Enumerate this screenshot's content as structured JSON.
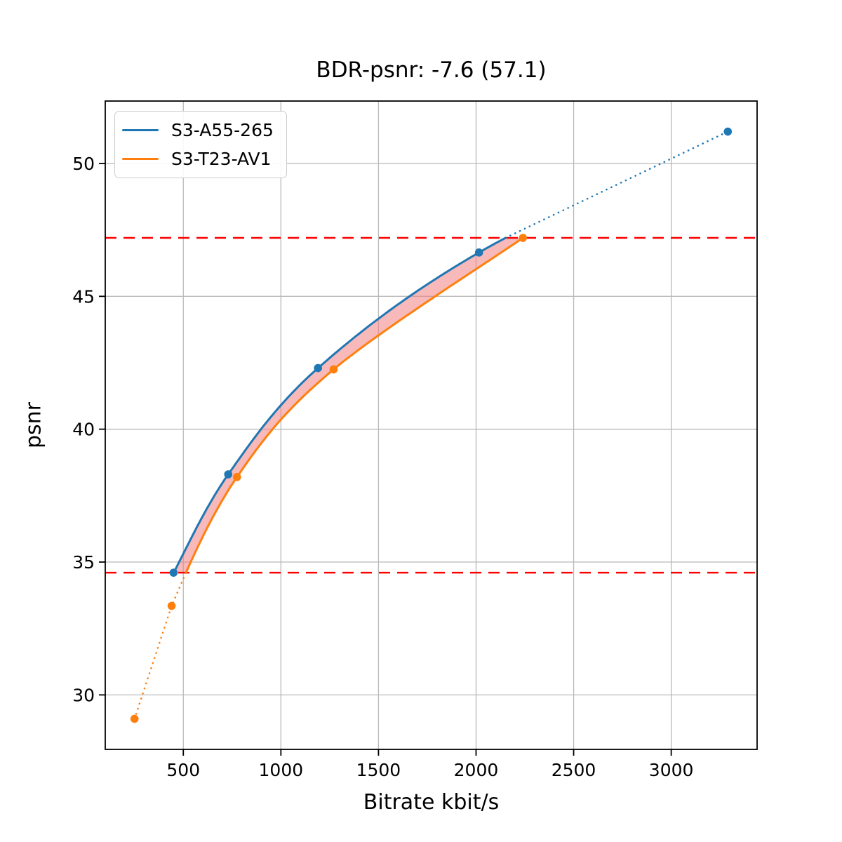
{
  "chart_data": {
    "type": "line",
    "title": "BDR-psnr: -7.6 (57.1)",
    "xlabel": "Bitrate kbit/s",
    "ylabel": "psnr",
    "xlim": [
      100,
      3440
    ],
    "ylim": [
      27.95,
      52.35
    ],
    "x_ticks": [
      500,
      1000,
      1500,
      2000,
      2500,
      3000
    ],
    "y_ticks": [
      30,
      35,
      40,
      45,
      50
    ],
    "grid": true,
    "legend_position": "upper left",
    "series": [
      {
        "name": "S3-A55-265",
        "color": "#1f77b4",
        "x": [
          450,
          730,
          1190,
          2015,
          3290
        ],
        "y": [
          34.6,
          38.3,
          42.3,
          46.65,
          51.2
        ]
      },
      {
        "name": "S3-T23-AV1",
        "color": "#ff7f0e",
        "x": [
          250,
          440,
          775,
          1270,
          2240
        ],
        "y": [
          29.1,
          33.35,
          38.2,
          42.25,
          47.2
        ]
      }
    ],
    "overlap_band": {
      "lower_psnr": 34.6,
      "upper_psnr": 47.2,
      "line_color": "#ff0000",
      "line_style": "dashed",
      "fill_color": "#f08080",
      "fill_opacity": 0.55
    },
    "style": {
      "grid_color": "#b9b9b9",
      "spine_color": "#000000",
      "tick_label_color": "#000000",
      "background": "#ffffff"
    }
  }
}
